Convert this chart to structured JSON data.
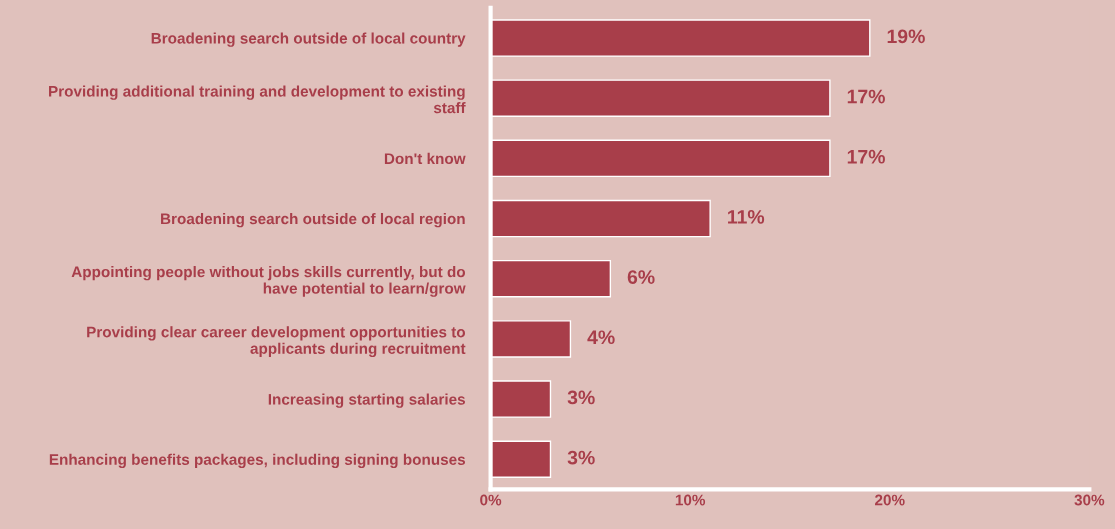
{
  "chart_data": {
    "type": "bar",
    "orientation": "horizontal",
    "categories": [
      "Broadening search outside of local country",
      "Providing additional training and development to existing staff",
      "Don't know",
      "Broadening search outside of local region",
      "Appointing people without jobs skills currently, but do have potential to learn/grow",
      "Providing clear career development opportunities to applicants during recruitment",
      "Increasing starting salaries",
      "Enhancing benefits packages, including signing bonuses"
    ],
    "values": [
      19,
      17,
      17,
      11,
      6,
      4,
      3,
      3
    ],
    "value_labels": [
      "19%",
      "17%",
      "17%",
      "11%",
      "6%",
      "4%",
      "3%",
      "3%"
    ],
    "color": "#a83e4a",
    "xlim": [
      0,
      30
    ],
    "xticks": [
      {
        "value": 0,
        "label": "0%"
      },
      {
        "value": 10,
        "label": "10%"
      },
      {
        "value": 20,
        "label": "20%"
      },
      {
        "value": 30,
        "label": "30%"
      }
    ],
    "grid": false,
    "legend": false
  }
}
